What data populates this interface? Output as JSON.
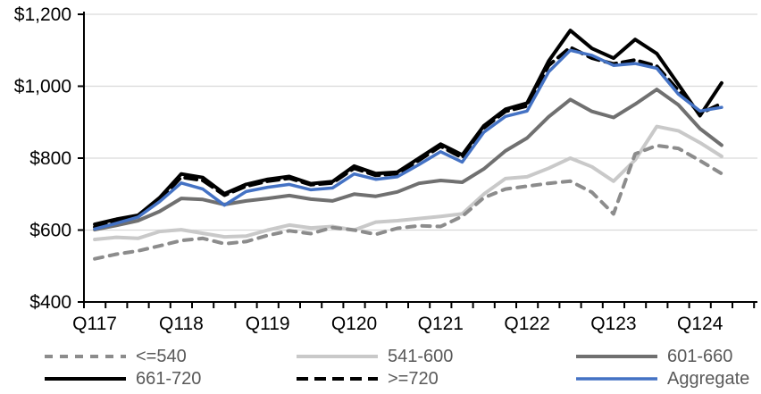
{
  "chart_data": {
    "type": "line",
    "title": "",
    "x": [
      "Q117",
      "Q217",
      "Q317",
      "Q417",
      "Q118",
      "Q218",
      "Q318",
      "Q418",
      "Q119",
      "Q219",
      "Q319",
      "Q419",
      "Q120",
      "Q220",
      "Q320",
      "Q420",
      "Q121",
      "Q221",
      "Q321",
      "Q421",
      "Q122",
      "Q222",
      "Q322",
      "Q422",
      "Q123",
      "Q223",
      "Q323",
      "Q423",
      "Q124",
      "Q224"
    ],
    "x_tick_labels": [
      "Q117",
      "Q118",
      "Q119",
      "Q120",
      "Q121",
      "Q122",
      "Q123",
      "Q124"
    ],
    "yticks": [
      {
        "value": 400,
        "label": "$400"
      },
      {
        "value": 600,
        "label": "$600"
      },
      {
        "value": 800,
        "label": "$800"
      },
      {
        "value": 1000,
        "label": "$1,000"
      },
      {
        "value": 1200,
        "label": "$1,200"
      }
    ],
    "ylim": [
      400,
      1200
    ],
    "grid": "horizontal",
    "gridline_color": "#D9D9D9",
    "axis_color": "#000000",
    "legend_position": "bottom",
    "legend_text_color": "#595959",
    "series": [
      {
        "name": "<=540",
        "color": "#8C8C8C",
        "style": "dashed",
        "width": 4,
        "values": [
          520,
          533,
          542,
          556,
          571,
          577,
          562,
          568,
          585,
          598,
          590,
          607,
          600,
          588,
          605,
          612,
          610,
          638,
          690,
          714,
          722,
          730,
          736,
          705,
          645,
          812,
          835,
          827,
          793,
          757
        ]
      },
      {
        "name": "541-600",
        "color": "#C9C9C9",
        "style": "solid",
        "width": 4,
        "values": [
          574,
          580,
          577,
          596,
          601,
          591,
          581,
          583,
          600,
          614,
          606,
          610,
          600,
          622,
          626,
          632,
          638,
          645,
          700,
          743,
          748,
          772,
          800,
          776,
          736,
          795,
          888,
          876,
          843,
          805
        ]
      },
      {
        "name": "601-660",
        "color": "#707070",
        "style": "solid",
        "width": 4,
        "values": [
          601,
          613,
          626,
          652,
          688,
          685,
          671,
          681,
          688,
          696,
          686,
          681,
          700,
          694,
          706,
          730,
          738,
          733,
          770,
          820,
          856,
          915,
          963,
          930,
          913,
          950,
          991,
          948,
          882,
          836
        ]
      },
      {
        "name": "661-720",
        "color": "#000000",
        "style": "solid",
        "width": 4,
        "values": [
          616,
          630,
          641,
          690,
          756,
          746,
          701,
          727,
          741,
          749,
          729,
          735,
          778,
          757,
          761,
          800,
          839,
          809,
          890,
          936,
          953,
          1070,
          1155,
          1105,
          1078,
          1130,
          1091,
          1005,
          918,
          1009
        ]
      },
      {
        "name": ">=720",
        "color": "#000000",
        "style": "dashed",
        "width": 4,
        "values": [
          608,
          624,
          637,
          684,
          747,
          738,
          697,
          722,
          736,
          744,
          726,
          731,
          772,
          752,
          757,
          794,
          833,
          801,
          884,
          930,
          945,
          1058,
          1108,
          1078,
          1062,
          1073,
          1056,
          988,
          924,
          952
        ]
      },
      {
        "name": "Aggregate",
        "color": "#4472C4",
        "style": "solid",
        "width": 3.5,
        "values": [
          603,
          619,
          636,
          679,
          731,
          714,
          669,
          707,
          719,
          727,
          712,
          717,
          756,
          741,
          748,
          782,
          818,
          789,
          872,
          916,
          931,
          1040,
          1100,
          1086,
          1058,
          1063,
          1050,
          978,
          931,
          941
        ]
      }
    ],
    "legend_rows": [
      [
        "<=540",
        "541-600",
        "601-660"
      ],
      [
        "661-720",
        ">=720",
        "Aggregate"
      ]
    ]
  }
}
